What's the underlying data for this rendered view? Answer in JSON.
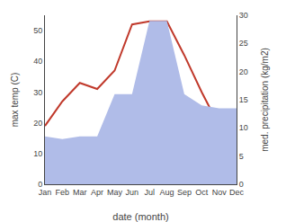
{
  "chart_data": {
    "type": "line",
    "categories": [
      "Jan",
      "Feb",
      "Mar",
      "Apr",
      "May",
      "Jun",
      "Jul",
      "Aug",
      "Sep",
      "Oct",
      "Nov",
      "Dec"
    ],
    "series": [
      {
        "type": "area",
        "axis": "y2",
        "color": "#b0bce8",
        "values": [
          8.5,
          8.0,
          8.5,
          8.5,
          16,
          16,
          29,
          29,
          16,
          14,
          13.5,
          13.5
        ]
      },
      {
        "type": "line",
        "color": "#c0392b",
        "values": [
          19,
          27,
          33,
          31,
          37,
          52,
          53,
          53,
          42,
          30,
          19,
          18
        ]
      }
    ],
    "xlabel": "date (month)",
    "ylabel": "max temp (C)",
    "y2label": "med. precipitation (kg/m2)",
    "ylim": [
      0,
      55
    ],
    "yticks": [
      0,
      10,
      20,
      30,
      40,
      50
    ],
    "y2lim": [
      0,
      30
    ],
    "y2ticks": [
      0,
      5,
      10,
      15,
      20,
      25,
      30
    ],
    "grid": false
  }
}
